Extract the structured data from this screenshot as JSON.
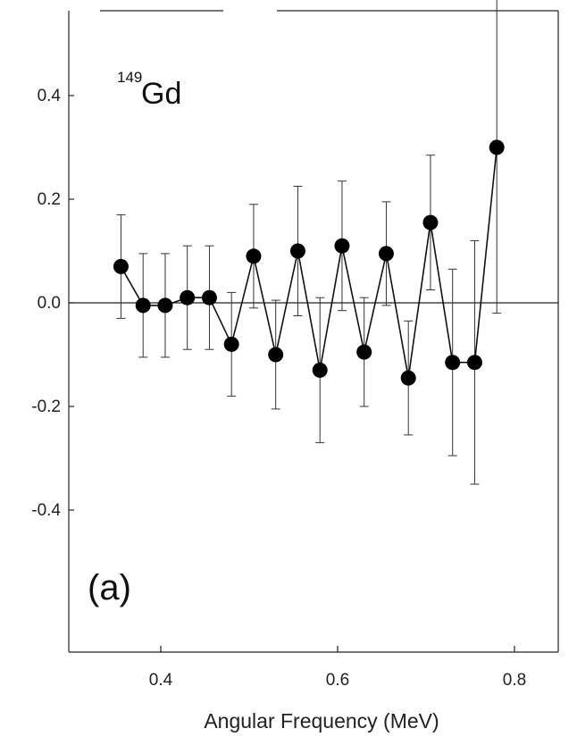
{
  "chart_data": {
    "type": "line",
    "title": "",
    "xlabel": "Angular Frequency (MeV)",
    "ylabel": "",
    "xlim": [
      0.3,
      0.85
    ],
    "ylim": [
      -0.5,
      0.46
    ],
    "x_ticks": [
      0.4,
      0.6,
      0.8
    ],
    "x_tick_labels": [
      "0.4",
      "0.6",
      "0.8"
    ],
    "y_ticks": [
      0.4,
      0.2,
      0.0,
      -0.2,
      -0.4
    ],
    "y_tick_labels": [
      "0.4",
      "0.2",
      "0.0",
      "-0.2",
      "-0.4"
    ],
    "zero_line": true,
    "grid": false,
    "annotations": {
      "nucleus_mass": "149",
      "nucleus_name": "Gd",
      "panel_label": "(a)"
    },
    "series": [
      {
        "marker": "filled-circle",
        "color": "#000000",
        "x": [
          0.355,
          0.38,
          0.405,
          0.43,
          0.455,
          0.48,
          0.505,
          0.53,
          0.555,
          0.58,
          0.605,
          0.63,
          0.655,
          0.68,
          0.705,
          0.73,
          0.755,
          0.78
        ],
        "y": [
          0.07,
          -0.005,
          -0.005,
          0.01,
          0.01,
          -0.08,
          0.09,
          -0.1,
          0.1,
          -0.13,
          0.11,
          -0.095,
          0.095,
          -0.145,
          0.155,
          -0.115,
          -0.115,
          0.3
        ],
        "err": [
          0.1,
          0.1,
          0.1,
          0.1,
          0.1,
          0.1,
          0.1,
          0.105,
          0.125,
          0.14,
          0.125,
          0.105,
          0.1,
          0.11,
          0.13,
          0.18,
          0.235,
          0.32
        ]
      }
    ]
  }
}
